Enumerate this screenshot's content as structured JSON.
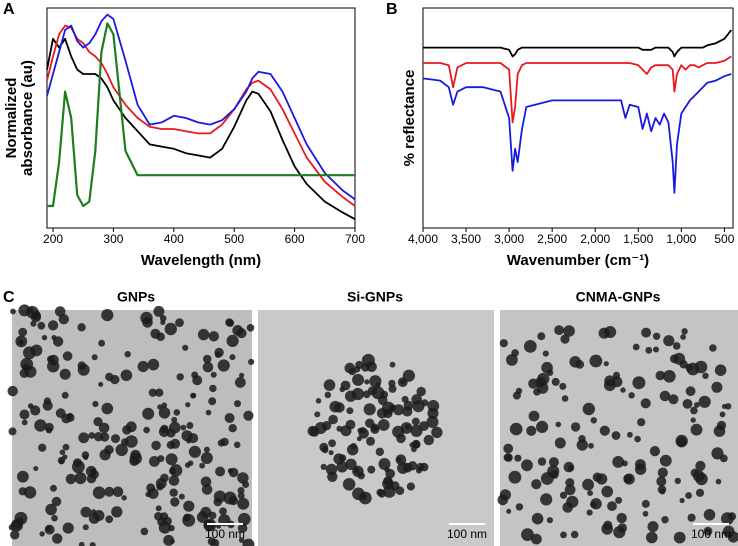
{
  "chart_data": [
    {
      "type": "line",
      "label": "A",
      "xlabel": "Wavelength (nm)",
      "ylabel": [
        "Normalized",
        "absorbance (au)"
      ],
      "x": [
        190,
        200,
        210,
        220,
        230,
        240,
        250,
        260,
        270,
        280,
        290,
        300,
        320,
        340,
        360,
        380,
        400,
        420,
        440,
        460,
        480,
        500,
        520,
        530,
        540,
        560,
        580,
        600,
        620,
        650,
        680,
        700
      ],
      "xlim": [
        190,
        700
      ],
      "xticks": [
        200,
        300,
        400,
        500,
        600,
        700
      ],
      "ylim": [
        0,
        1
      ],
      "series": [
        {
          "color": "#000000",
          "values": [
            0.72,
            0.86,
            0.82,
            0.86,
            0.78,
            0.72,
            0.7,
            0.7,
            0.7,
            0.68,
            0.64,
            0.58,
            0.5,
            0.44,
            0.38,
            0.37,
            0.36,
            0.34,
            0.33,
            0.32,
            0.36,
            0.46,
            0.58,
            0.62,
            0.61,
            0.53,
            0.4,
            0.28,
            0.2,
            0.12,
            0.07,
            0.04
          ]
        },
        {
          "color": "#e8191e",
          "values": [
            0.67,
            0.78,
            0.88,
            0.92,
            0.91,
            0.86,
            0.84,
            0.8,
            0.78,
            0.75,
            0.7,
            0.64,
            0.56,
            0.5,
            0.46,
            0.45,
            0.45,
            0.44,
            0.43,
            0.43,
            0.47,
            0.54,
            0.63,
            0.66,
            0.67,
            0.63,
            0.54,
            0.43,
            0.32,
            0.21,
            0.14,
            0.1
          ]
        },
        {
          "color": "#1a1adf",
          "values": [
            0.6,
            0.7,
            0.8,
            0.9,
            0.92,
            0.85,
            0.82,
            0.84,
            0.88,
            0.94,
            0.97,
            0.95,
            0.76,
            0.56,
            0.47,
            0.48,
            0.51,
            0.5,
            0.48,
            0.47,
            0.49,
            0.54,
            0.62,
            0.68,
            0.71,
            0.7,
            0.62,
            0.5,
            0.38,
            0.25,
            0.17,
            0.13
          ]
        },
        {
          "color": "#1e7d1e",
          "values": [
            0.1,
            0.1,
            0.3,
            0.62,
            0.5,
            0.15,
            0.1,
            0.12,
            0.35,
            0.8,
            0.93,
            0.88,
            0.35,
            0.24,
            0.24,
            0.24,
            0.24,
            0.24,
            0.24,
            0.24,
            0.24,
            0.24,
            0.24,
            0.24,
            0.24,
            0.24,
            0.24,
            0.24,
            0.24,
            0.24,
            0.24,
            0.24
          ]
        }
      ]
    },
    {
      "type": "line",
      "label": "B",
      "xlabel": "Wavenumber (cm⁻¹)",
      "ylabel": [
        "% reflectance"
      ],
      "x": [
        4000,
        3800,
        3700,
        3650,
        3600,
        3500,
        3300,
        3100,
        3000,
        2960,
        2930,
        2900,
        2850,
        2800,
        2500,
        2200,
        2000,
        1800,
        1700,
        1650,
        1600,
        1500,
        1450,
        1400,
        1350,
        1300,
        1250,
        1200,
        1150,
        1100,
        1080,
        1050,
        1000,
        950,
        900,
        850,
        800,
        750,
        700,
        600,
        500,
        420
      ],
      "xlim": [
        4000,
        400
      ],
      "xticks": [
        {
          "value": 4000,
          "label": "4,000"
        },
        {
          "value": 3500,
          "label": "3,500"
        },
        {
          "value": 3000,
          "label": "3,000"
        },
        {
          "value": 2500,
          "label": "2,500"
        },
        {
          "value": 2000,
          "label": "2,000"
        },
        {
          "value": 1500,
          "label": "1,500"
        },
        {
          "value": 1000,
          "label": "1,000"
        },
        500
      ],
      "ylim": [
        0,
        1
      ],
      "series": [
        {
          "color": "#000000",
          "values": [
            0.82,
            0.82,
            0.82,
            0.82,
            0.82,
            0.82,
            0.82,
            0.82,
            0.81,
            0.78,
            0.79,
            0.81,
            0.82,
            0.82,
            0.82,
            0.82,
            0.82,
            0.82,
            0.82,
            0.82,
            0.82,
            0.82,
            0.81,
            0.81,
            0.81,
            0.82,
            0.82,
            0.82,
            0.82,
            0.8,
            0.78,
            0.8,
            0.82,
            0.82,
            0.82,
            0.82,
            0.82,
            0.82,
            0.83,
            0.84,
            0.86,
            0.9
          ]
        },
        {
          "color": "#e8191e",
          "values": [
            0.75,
            0.75,
            0.74,
            0.64,
            0.73,
            0.75,
            0.75,
            0.75,
            0.72,
            0.48,
            0.55,
            0.7,
            0.74,
            0.75,
            0.75,
            0.75,
            0.75,
            0.75,
            0.75,
            0.75,
            0.75,
            0.74,
            0.72,
            0.7,
            0.73,
            0.74,
            0.74,
            0.74,
            0.74,
            0.72,
            0.62,
            0.7,
            0.74,
            0.72,
            0.74,
            0.74,
            0.73,
            0.74,
            0.75,
            0.75,
            0.76,
            0.78
          ]
        },
        {
          "color": "#1a1adf",
          "values": [
            0.68,
            0.67,
            0.64,
            0.56,
            0.62,
            0.64,
            0.64,
            0.62,
            0.5,
            0.26,
            0.36,
            0.3,
            0.45,
            0.55,
            0.58,
            0.58,
            0.58,
            0.58,
            0.58,
            0.5,
            0.56,
            0.55,
            0.45,
            0.52,
            0.44,
            0.5,
            0.47,
            0.52,
            0.48,
            0.3,
            0.16,
            0.38,
            0.52,
            0.55,
            0.58,
            0.6,
            0.62,
            0.64,
            0.66,
            0.67,
            0.69,
            0.7
          ]
        }
      ]
    }
  ],
  "images": {
    "label": "C",
    "panels": [
      {
        "title": "GNPs",
        "scale_bar": "100 nm"
      },
      {
        "title": "Si-GNPs",
        "scale_bar": "100 nm"
      },
      {
        "title": "CNMA-GNPs",
        "scale_bar": "100 nm"
      }
    ]
  }
}
